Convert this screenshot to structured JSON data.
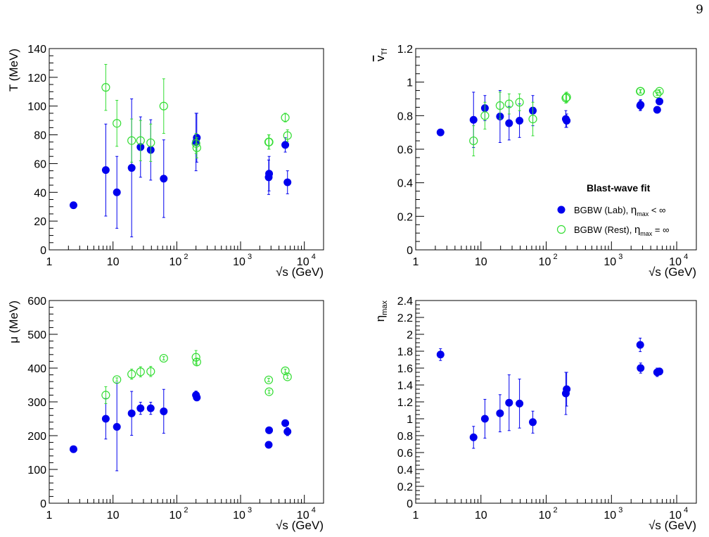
{
  "page_number": "9",
  "colors": {
    "lab": "#0000ee",
    "rest": "#33dd33",
    "axis": "#000000"
  },
  "legend": {
    "title": "Blast-wave fit",
    "entries": [
      {
        "series": "lab",
        "marker": "filled-circle",
        "text": "BGBW (Lab),  ",
        "sym": "η",
        "sub": "max",
        "tail": " < ∞"
      },
      {
        "series": "rest",
        "marker": "open-circle",
        "text": "BGBW (Rest), ",
        "sym": "η",
        "sub": "max",
        "tail": " = ∞"
      }
    ]
  },
  "chart_data": [
    {
      "id": "T",
      "type": "scatter",
      "xscale": "log",
      "xlim": [
        1,
        20000
      ],
      "ylim": [
        0,
        140
      ],
      "xlabel": "√s (GeV)",
      "ylabel": "T (MeV)",
      "x_ticks": [
        {
          "value": 1,
          "label": "1"
        },
        {
          "value": 10,
          "label": "10"
        },
        {
          "value": 100,
          "label": "10",
          "exp": "2"
        },
        {
          "value": 1000,
          "label": "10",
          "exp": "3"
        },
        {
          "value": 10000,
          "label": "10",
          "exp": "4"
        }
      ],
      "y_ticks": [
        {
          "value": 0,
          "label": "0"
        },
        {
          "value": 20,
          "label": "20"
        },
        {
          "value": 40,
          "label": "40"
        },
        {
          "value": 60,
          "label": "60"
        },
        {
          "value": 80,
          "label": "80"
        },
        {
          "value": 100,
          "label": "100"
        },
        {
          "value": 120,
          "label": "120"
        },
        {
          "value": 140,
          "label": "140"
        }
      ],
      "y_minor_step": 5,
      "series": [
        {
          "key": "lab",
          "points": [
            {
              "x": 2.4,
              "y": 31,
              "err": 0
            },
            {
              "x": 7.7,
              "y": 55.5,
              "err": 32
            },
            {
              "x": 11.5,
              "y": 40,
              "err": 25
            },
            {
              "x": 19.6,
              "y": 57,
              "err": 48
            },
            {
              "x": 27,
              "y": 71.5,
              "err": 21
            },
            {
              "x": 39,
              "y": 69.5,
              "err": 21
            },
            {
              "x": 62.4,
              "y": 49.5,
              "err": 27
            },
            {
              "x": 200,
              "y": 75,
              "err": 20
            },
            {
              "x": 206,
              "y": 78,
              "err": 17
            },
            {
              "x": 2760,
              "y": 50.5,
              "err": 12
            },
            {
              "x": 2800,
              "y": 53,
              "err": 12
            },
            {
              "x": 5020,
              "y": 73,
              "err": 5
            },
            {
              "x": 5440,
              "y": 47,
              "err": 8
            }
          ]
        },
        {
          "key": "rest",
          "points": [
            {
              "x": 7.7,
              "y": 113,
              "err": 16
            },
            {
              "x": 11.5,
              "y": 88,
              "err": 16
            },
            {
              "x": 19.6,
              "y": 76,
              "err": 15
            },
            {
              "x": 27,
              "y": 76,
              "err": 14
            },
            {
              "x": 39,
              "y": 74.5,
              "err": 13
            },
            {
              "x": 62.4,
              "y": 100,
              "err": 19
            },
            {
              "x": 200,
              "y": 74,
              "err": 7
            },
            {
              "x": 206,
              "y": 71,
              "err": 7
            },
            {
              "x": 2760,
              "y": 75,
              "err": 5
            },
            {
              "x": 2800,
              "y": 75,
              "err": 5
            },
            {
              "x": 5020,
              "y": 92,
              "err": 3
            },
            {
              "x": 5440,
              "y": 79.5,
              "err": 4
            }
          ]
        }
      ]
    },
    {
      "id": "vT",
      "type": "scatter",
      "xscale": "log",
      "xlim": [
        1,
        20000
      ],
      "ylim": [
        0,
        1.2
      ],
      "xlabel": "√s (GeV)",
      "ylabel": "v",
      "ylabel_sub": "Tf",
      "ylabel_overline": true,
      "x_ticks": [
        {
          "value": 1,
          "label": "1"
        },
        {
          "value": 10,
          "label": "10"
        },
        {
          "value": 100,
          "label": "10",
          "exp": "2"
        },
        {
          "value": 1000,
          "label": "10",
          "exp": "3"
        },
        {
          "value": 10000,
          "label": "10",
          "exp": "4"
        }
      ],
      "y_ticks": [
        {
          "value": 0,
          "label": "0"
        },
        {
          "value": 0.2,
          "label": "0.2"
        },
        {
          "value": 0.4,
          "label": "0.4"
        },
        {
          "value": 0.6,
          "label": "0.6"
        },
        {
          "value": 0.8,
          "label": "0.8"
        },
        {
          "value": 1.0,
          "label": "1"
        },
        {
          "value": 1.2,
          "label": "1.2"
        }
      ],
      "y_minor_step": 0.05,
      "legend_here": true,
      "series": [
        {
          "key": "lab",
          "points": [
            {
              "x": 2.4,
              "y": 0.7,
              "err": 0
            },
            {
              "x": 7.7,
              "y": 0.775,
              "err": 0.165
            },
            {
              "x": 11.5,
              "y": 0.845,
              "err": 0.075
            },
            {
              "x": 19.6,
              "y": 0.795,
              "err": 0.155
            },
            {
              "x": 27,
              "y": 0.755,
              "err": 0.1
            },
            {
              "x": 39,
              "y": 0.77,
              "err": 0.1
            },
            {
              "x": 62.4,
              "y": 0.83,
              "err": 0.09
            },
            {
              "x": 200,
              "y": 0.78,
              "err": 0.05
            },
            {
              "x": 206,
              "y": 0.77,
              "err": 0.04
            },
            {
              "x": 2760,
              "y": 0.86,
              "err": 0.03
            },
            {
              "x": 2800,
              "y": 0.865,
              "err": 0.03
            },
            {
              "x": 5020,
              "y": 0.835,
              "err": 0.01
            },
            {
              "x": 5440,
              "y": 0.885,
              "err": 0.01
            }
          ]
        },
        {
          "key": "rest",
          "points": [
            {
              "x": 7.7,
              "y": 0.65,
              "err": 0.09
            },
            {
              "x": 11.5,
              "y": 0.8,
              "err": 0.08
            },
            {
              "x": 19.6,
              "y": 0.86,
              "err": 0.08
            },
            {
              "x": 27,
              "y": 0.87,
              "err": 0.06
            },
            {
              "x": 39,
              "y": 0.88,
              "err": 0.05
            },
            {
              "x": 62.4,
              "y": 0.78,
              "err": 0.1
            },
            {
              "x": 200,
              "y": 0.905,
              "err": 0.03
            },
            {
              "x": 206,
              "y": 0.91,
              "err": 0.03
            },
            {
              "x": 2760,
              "y": 0.945,
              "err": 0.01
            },
            {
              "x": 2800,
              "y": 0.945,
              "err": 0.01
            },
            {
              "x": 5020,
              "y": 0.93,
              "err": 0.01
            },
            {
              "x": 5440,
              "y": 0.945,
              "err": 0.01
            }
          ]
        }
      ]
    },
    {
      "id": "mu",
      "type": "scatter",
      "xscale": "log",
      "xlim": [
        1,
        20000
      ],
      "ylim": [
        0,
        600
      ],
      "xlabel": "√s (GeV)",
      "ylabel": "μ (MeV)",
      "x_ticks": [
        {
          "value": 1,
          "label": "1"
        },
        {
          "value": 10,
          "label": "10"
        },
        {
          "value": 100,
          "label": "10",
          "exp": "2"
        },
        {
          "value": 1000,
          "label": "10",
          "exp": "3"
        },
        {
          "value": 10000,
          "label": "10",
          "exp": "4"
        }
      ],
      "y_ticks": [
        {
          "value": 0,
          "label": "0"
        },
        {
          "value": 100,
          "label": "100"
        },
        {
          "value": 200,
          "label": "200"
        },
        {
          "value": 300,
          "label": "300"
        },
        {
          "value": 400,
          "label": "400"
        },
        {
          "value": 500,
          "label": "500"
        },
        {
          "value": 600,
          "label": "600"
        }
      ],
      "y_minor_step": 20,
      "series": [
        {
          "key": "lab",
          "points": [
            {
              "x": 2.4,
              "y": 160,
              "err": 0
            },
            {
              "x": 7.7,
              "y": 250,
              "err": 60
            },
            {
              "x": 11.5,
              "y": 226,
              "err": 130
            },
            {
              "x": 19.6,
              "y": 266,
              "err": 65
            },
            {
              "x": 27,
              "y": 281,
              "err": 18
            },
            {
              "x": 39,
              "y": 281,
              "err": 18
            },
            {
              "x": 62.4,
              "y": 272,
              "err": 65
            },
            {
              "x": 200,
              "y": 320,
              "err": 12
            },
            {
              "x": 206,
              "y": 313,
              "err": 10
            },
            {
              "x": 2760,
              "y": 173,
              "err": 5
            },
            {
              "x": 2800,
              "y": 216,
              "err": 5
            },
            {
              "x": 5020,
              "y": 237,
              "err": 5
            },
            {
              "x": 5440,
              "y": 212,
              "err": 12
            }
          ]
        },
        {
          "key": "rest",
          "points": [
            {
              "x": 7.7,
              "y": 320,
              "err": 25
            },
            {
              "x": 11.5,
              "y": 366,
              "err": 5
            },
            {
              "x": 19.6,
              "y": 382,
              "err": 15
            },
            {
              "x": 27,
              "y": 389,
              "err": 15
            },
            {
              "x": 39,
              "y": 390,
              "err": 15
            },
            {
              "x": 62.4,
              "y": 429,
              "err": 5
            },
            {
              "x": 200,
              "y": 432,
              "err": 20
            },
            {
              "x": 206,
              "y": 418,
              "err": 10
            },
            {
              "x": 2760,
              "y": 365,
              "err": 5
            },
            {
              "x": 2800,
              "y": 330,
              "err": 5
            },
            {
              "x": 5020,
              "y": 392,
              "err": 5
            },
            {
              "x": 5440,
              "y": 374,
              "err": 5
            }
          ]
        }
      ]
    },
    {
      "id": "eta",
      "type": "scatter",
      "xscale": "log",
      "xlim": [
        1,
        20000
      ],
      "ylim": [
        0,
        2.4
      ],
      "xlabel": "√s (GeV)",
      "ylabel": "η",
      "ylabel_sub": "max",
      "x_ticks": [
        {
          "value": 1,
          "label": "1"
        },
        {
          "value": 10,
          "label": "10"
        },
        {
          "value": 100,
          "label": "10",
          "exp": "2"
        },
        {
          "value": 1000,
          "label": "10",
          "exp": "3"
        },
        {
          "value": 10000,
          "label": "10",
          "exp": "4"
        }
      ],
      "y_ticks": [
        {
          "value": 0,
          "label": "0"
        },
        {
          "value": 0.2,
          "label": "0.2"
        },
        {
          "value": 0.4,
          "label": "0.4"
        },
        {
          "value": 0.6,
          "label": "0.6"
        },
        {
          "value": 0.8,
          "label": "0.8"
        },
        {
          "value": 1.0,
          "label": "1"
        },
        {
          "value": 1.2,
          "label": "1.2"
        },
        {
          "value": 1.4,
          "label": "1.4"
        },
        {
          "value": 1.6,
          "label": "1.6"
        },
        {
          "value": 1.8,
          "label": "1.8"
        },
        {
          "value": 2.0,
          "label": "2"
        },
        {
          "value": 2.2,
          "label": "2.2"
        },
        {
          "value": 2.4,
          "label": "2.4"
        }
      ],
      "y_minor_step": 0.05,
      "series": [
        {
          "key": "lab",
          "points": [
            {
              "x": 2.4,
              "y": 1.76,
              "err": 0.07
            },
            {
              "x": 7.7,
              "y": 0.78,
              "err": 0.13
            },
            {
              "x": 11.5,
              "y": 1.0,
              "err": 0.23
            },
            {
              "x": 19.6,
              "y": 1.065,
              "err": 0.22
            },
            {
              "x": 27,
              "y": 1.19,
              "err": 0.33
            },
            {
              "x": 39,
              "y": 1.18,
              "err": 0.29
            },
            {
              "x": 62.4,
              "y": 0.96,
              "err": 0.13
            },
            {
              "x": 200,
              "y": 1.3,
              "err": 0.25
            },
            {
              "x": 206,
              "y": 1.35,
              "err": 0.2
            },
            {
              "x": 2760,
              "y": 1.875,
              "err": 0.08
            },
            {
              "x": 2800,
              "y": 1.6,
              "err": 0.06
            },
            {
              "x": 5020,
              "y": 1.55,
              "err": 0.05
            },
            {
              "x": 5440,
              "y": 1.56,
              "err": 0.04
            }
          ]
        }
      ]
    }
  ]
}
